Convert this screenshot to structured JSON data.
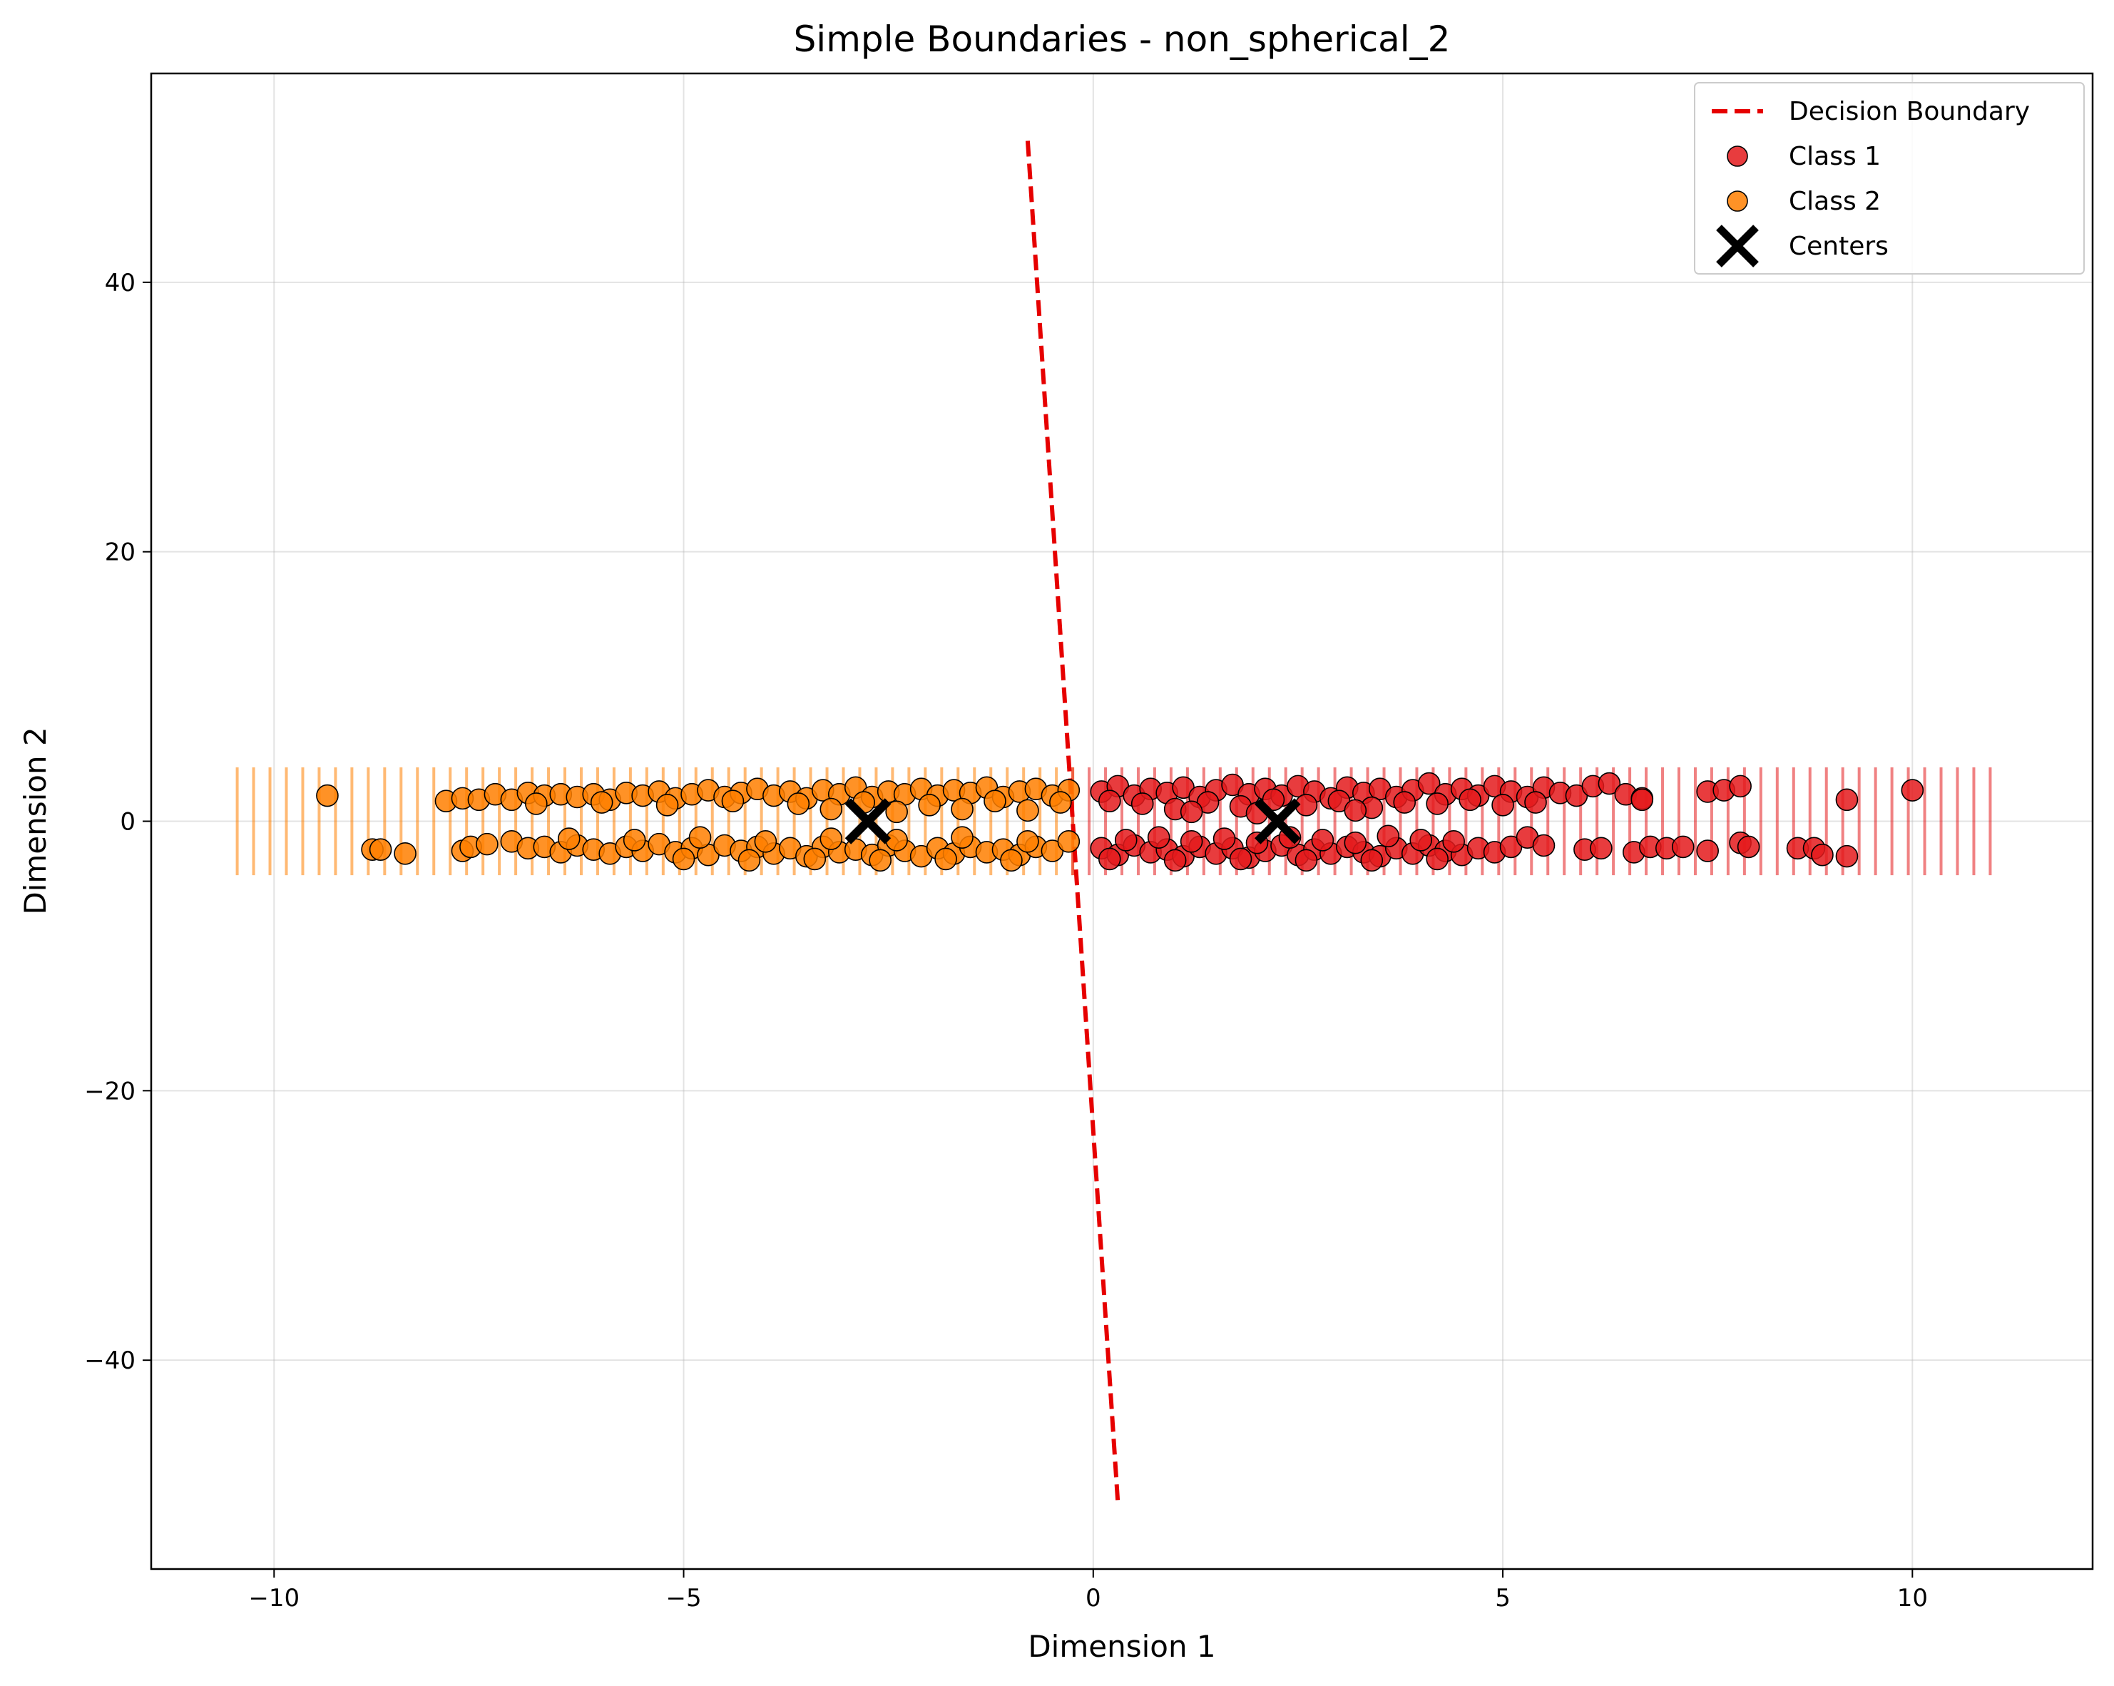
{
  "chart_data": {
    "type": "scatter",
    "title": "Simple Boundaries - non_spherical_2",
    "xlabel": "Dimension 1",
    "ylabel": "Dimension 2",
    "xlim": [
      -11.5,
      12.2
    ],
    "ylim": [
      -55.5,
      55.5
    ],
    "x_ticks": [
      -10,
      -5,
      0,
      5,
      10
    ],
    "y_ticks": [
      -40,
      -20,
      0,
      20,
      40
    ],
    "x_tick_labels": [
      "−10",
      "−5",
      "0",
      "5",
      "10"
    ],
    "y_tick_labels": [
      "−40",
      "−20",
      "0",
      "20",
      "40"
    ],
    "grid": true,
    "legend_position": "top-right",
    "legend": [
      {
        "label": "Decision Boundary",
        "kind": "dashed-line",
        "color": "#e60000"
      },
      {
        "label": "Class 1",
        "kind": "marker",
        "color": "#e41a1c"
      },
      {
        "label": "Class 2",
        "kind": "marker",
        "color": "#ff7f00"
      },
      {
        "label": "Centers",
        "kind": "x-marker",
        "color": "#000000"
      }
    ],
    "decision_boundary": {
      "points": [
        [
          -0.8,
          50.5
        ],
        [
          0.3,
          -50.5
        ]
      ],
      "color": "#e60000"
    },
    "centers": [
      [
        -2.75,
        0.0
      ],
      [
        2.25,
        0.0
      ]
    ],
    "region_shading": {
      "class2_x_range": [
        -10.45,
        -0.25
      ],
      "class1_x_range": [
        -0.25,
        11.05
      ],
      "y_range": [
        -4,
        4
      ],
      "step": 0.2,
      "class1_color": "#e41a1c",
      "class2_color": "#ff7f00"
    },
    "series": [
      {
        "label": "Class 1",
        "color": "#e41a1c",
        "points": [
          [
            0.1,
            2.2
          ],
          [
            0.3,
            2.6
          ],
          [
            0.5,
            1.9
          ],
          [
            0.7,
            2.4
          ],
          [
            0.9,
            2.1
          ],
          [
            1.1,
            2.5
          ],
          [
            1.3,
            1.8
          ],
          [
            1.5,
            2.3
          ],
          [
            1.7,
            2.7
          ],
          [
            1.9,
            2.0
          ],
          [
            2.1,
            2.4
          ],
          [
            2.3,
            1.9
          ],
          [
            2.5,
            2.6
          ],
          [
            2.7,
            2.2
          ],
          [
            2.9,
            1.7
          ],
          [
            3.1,
            2.5
          ],
          [
            3.3,
            2.1
          ],
          [
            3.5,
            2.4
          ],
          [
            3.7,
            1.8
          ],
          [
            3.9,
            2.3
          ],
          [
            4.1,
            2.8
          ],
          [
            4.3,
            2.0
          ],
          [
            4.5,
            2.4
          ],
          [
            4.7,
            1.9
          ],
          [
            4.9,
            2.6
          ],
          [
            5.1,
            2.2
          ],
          [
            5.3,
            1.8
          ],
          [
            5.5,
            2.5
          ],
          [
            5.7,
            2.1
          ],
          [
            5.9,
            1.9
          ],
          [
            6.1,
            2.6
          ],
          [
            6.3,
            2.8
          ],
          [
            6.5,
            2.0
          ],
          [
            6.7,
            1.7
          ],
          [
            7.5,
            2.2
          ],
          [
            7.7,
            2.3
          ],
          [
            7.9,
            2.6
          ],
          [
            9.2,
            1.6
          ],
          [
            10.0,
            2.3
          ],
          [
            0.2,
            1.5
          ],
          [
            0.6,
            1.3
          ],
          [
            1.0,
            0.9
          ],
          [
            1.4,
            1.4
          ],
          [
            1.8,
            1.1
          ],
          [
            2.2,
            1.6
          ],
          [
            2.6,
            1.2
          ],
          [
            3.0,
            1.5
          ],
          [
            3.4,
            1.0
          ],
          [
            3.8,
            1.4
          ],
          [
            4.2,
            1.3
          ],
          [
            4.6,
            1.6
          ],
          [
            5.0,
            1.2
          ],
          [
            5.4,
            1.4
          ],
          [
            6.7,
            1.6
          ],
          [
            1.2,
            0.7
          ],
          [
            2.0,
            0.6
          ],
          [
            3.2,
            0.8
          ],
          [
            0.1,
            -2.0
          ],
          [
            0.3,
            -2.5
          ],
          [
            0.5,
            -1.8
          ],
          [
            0.7,
            -2.3
          ],
          [
            0.9,
            -2.1
          ],
          [
            1.1,
            -2.6
          ],
          [
            1.3,
            -1.9
          ],
          [
            1.5,
            -2.4
          ],
          [
            1.7,
            -2.0
          ],
          [
            1.9,
            -2.7
          ],
          [
            2.1,
            -2.2
          ],
          [
            2.3,
            -1.8
          ],
          [
            2.5,
            -2.5
          ],
          [
            2.7,
            -2.1
          ],
          [
            2.9,
            -2.4
          ],
          [
            3.1,
            -1.9
          ],
          [
            3.3,
            -2.3
          ],
          [
            3.5,
            -2.6
          ],
          [
            3.7,
            -2.0
          ],
          [
            3.9,
            -2.4
          ],
          [
            4.1,
            -1.8
          ],
          [
            4.3,
            -2.2
          ],
          [
            4.5,
            -2.5
          ],
          [
            4.7,
            -2.0
          ],
          [
            4.9,
            -2.3
          ],
          [
            5.1,
            -1.9
          ],
          [
            5.3,
            -1.2
          ],
          [
            5.5,
            -1.8
          ],
          [
            6.0,
            -2.1
          ],
          [
            6.2,
            -2.0
          ],
          [
            6.6,
            -2.3
          ],
          [
            6.8,
            -1.9
          ],
          [
            7.0,
            -2.0
          ],
          [
            7.2,
            -1.9
          ],
          [
            7.5,
            -2.2
          ],
          [
            7.9,
            -1.6
          ],
          [
            8.0,
            -1.9
          ],
          [
            8.6,
            -2.0
          ],
          [
            8.8,
            -2.0
          ],
          [
            8.9,
            -2.5
          ],
          [
            9.2,
            -2.6
          ],
          [
            0.4,
            -1.4
          ],
          [
            0.8,
            -1.2
          ],
          [
            1.2,
            -1.5
          ],
          [
            1.6,
            -1.3
          ],
          [
            2.0,
            -1.6
          ],
          [
            2.4,
            -1.2
          ],
          [
            2.8,
            -1.4
          ],
          [
            3.2,
            -1.6
          ],
          [
            3.6,
            -1.1
          ],
          [
            4.0,
            -1.4
          ],
          [
            4.4,
            -1.5
          ],
          [
            0.2,
            -2.8
          ],
          [
            1.0,
            -2.9
          ],
          [
            1.8,
            -2.8
          ],
          [
            2.6,
            -2.9
          ],
          [
            3.4,
            -2.9
          ],
          [
            4.2,
            -2.8
          ]
        ]
      },
      {
        "label": "Class 2",
        "color": "#ff7f00",
        "points": [
          [
            -9.35,
            1.9
          ],
          [
            -7.9,
            1.5
          ],
          [
            -7.7,
            1.7
          ],
          [
            -7.5,
            1.6
          ],
          [
            -7.3,
            2.0
          ],
          [
            -7.1,
            1.6
          ],
          [
            -6.9,
            2.1
          ],
          [
            -6.7,
            1.9
          ],
          [
            -6.5,
            2.0
          ],
          [
            -6.3,
            1.8
          ],
          [
            -6.1,
            2.0
          ],
          [
            -5.9,
            1.6
          ],
          [
            -5.7,
            2.1
          ],
          [
            -5.5,
            1.9
          ],
          [
            -5.3,
            2.2
          ],
          [
            -5.1,
            1.7
          ],
          [
            -4.9,
            2.0
          ],
          [
            -4.7,
            2.3
          ],
          [
            -4.5,
            1.8
          ],
          [
            -4.3,
            2.1
          ],
          [
            -4.1,
            2.4
          ],
          [
            -3.9,
            1.9
          ],
          [
            -3.7,
            2.2
          ],
          [
            -3.5,
            1.7
          ],
          [
            -3.3,
            2.3
          ],
          [
            -3.1,
            2.0
          ],
          [
            -2.9,
            2.5
          ],
          [
            -2.7,
            1.8
          ],
          [
            -2.5,
            2.2
          ],
          [
            -2.3,
            2.0
          ],
          [
            -2.1,
            2.4
          ],
          [
            -1.9,
            1.9
          ],
          [
            -1.7,
            2.3
          ],
          [
            -1.5,
            2.1
          ],
          [
            -1.3,
            2.5
          ],
          [
            -1.1,
            1.8
          ],
          [
            -0.9,
            2.2
          ],
          [
            -0.7,
            2.4
          ],
          [
            -0.5,
            1.9
          ],
          [
            -0.3,
            2.3
          ],
          [
            -6.8,
            1.3
          ],
          [
            -6.0,
            1.4
          ],
          [
            -5.2,
            1.2
          ],
          [
            -4.4,
            1.5
          ],
          [
            -3.6,
            1.3
          ],
          [
            -2.8,
            1.4
          ],
          [
            -2.0,
            1.2
          ],
          [
            -1.2,
            1.5
          ],
          [
            -0.4,
            1.4
          ],
          [
            -3.2,
            0.9
          ],
          [
            -2.4,
            0.7
          ],
          [
            -1.6,
            0.9
          ],
          [
            -0.8,
            0.8
          ],
          [
            -8.8,
            -2.1
          ],
          [
            -8.7,
            -2.1
          ],
          [
            -8.4,
            -2.4
          ],
          [
            -7.7,
            -2.2
          ],
          [
            -7.6,
            -1.9
          ],
          [
            -7.4,
            -1.7
          ],
          [
            -7.1,
            -1.5
          ],
          [
            -6.9,
            -2.0
          ],
          [
            -6.7,
            -1.9
          ],
          [
            -6.5,
            -2.3
          ],
          [
            -6.3,
            -1.8
          ],
          [
            -6.1,
            -2.1
          ],
          [
            -5.9,
            -2.4
          ],
          [
            -5.7,
            -1.9
          ],
          [
            -5.5,
            -2.2
          ],
          [
            -5.3,
            -1.7
          ],
          [
            -5.1,
            -2.3
          ],
          [
            -4.9,
            -2.0
          ],
          [
            -4.7,
            -2.5
          ],
          [
            -4.5,
            -1.8
          ],
          [
            -4.3,
            -2.2
          ],
          [
            -4.1,
            -1.9
          ],
          [
            -3.9,
            -2.4
          ],
          [
            -3.7,
            -2.0
          ],
          [
            -3.5,
            -2.6
          ],
          [
            -3.3,
            -1.9
          ],
          [
            -3.1,
            -2.3
          ],
          [
            -2.9,
            -2.1
          ],
          [
            -2.7,
            -2.5
          ],
          [
            -2.5,
            -1.8
          ],
          [
            -2.3,
            -2.2
          ],
          [
            -2.1,
            -2.6
          ],
          [
            -1.9,
            -2.0
          ],
          [
            -1.7,
            -2.4
          ],
          [
            -1.5,
            -1.9
          ],
          [
            -1.3,
            -2.3
          ],
          [
            -1.1,
            -2.1
          ],
          [
            -0.9,
            -2.5
          ],
          [
            -0.7,
            -1.9
          ],
          [
            -0.5,
            -2.2
          ],
          [
            -0.3,
            -1.5
          ],
          [
            -6.4,
            -1.3
          ],
          [
            -5.6,
            -1.4
          ],
          [
            -4.8,
            -1.2
          ],
          [
            -4.0,
            -1.5
          ],
          [
            -3.2,
            -1.3
          ],
          [
            -2.4,
            -1.4
          ],
          [
            -1.6,
            -1.2
          ],
          [
            -0.8,
            -1.5
          ],
          [
            -5.0,
            -2.8
          ],
          [
            -4.2,
            -2.9
          ],
          [
            -3.4,
            -2.8
          ],
          [
            -2.6,
            -2.9
          ],
          [
            -1.8,
            -2.8
          ],
          [
            -1.0,
            -2.9
          ]
        ]
      }
    ]
  }
}
